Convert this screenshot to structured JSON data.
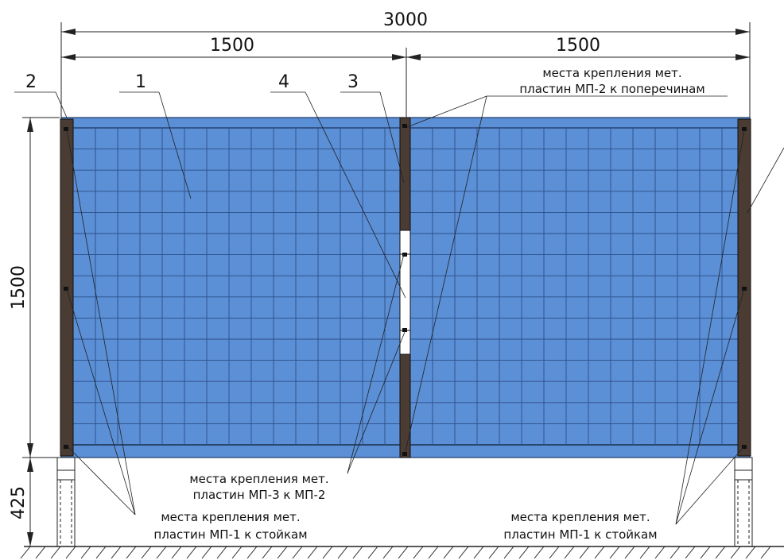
{
  "dimensions": {
    "total_width": "3000",
    "left_half": "1500",
    "right_half": "1500",
    "panel_height": "1500",
    "post_height": "425"
  },
  "callouts": {
    "c1": "1",
    "c2": "2",
    "c3": "3",
    "c4": "4"
  },
  "notes": {
    "top_right_line1": "места крепления мет.",
    "top_right_line2": "пластин МП-2 к поперечинам",
    "center_line1": "места крепления мет.",
    "center_line2": "пластин МП-3 к МП-2",
    "bottom_left_line1": "места крепления мет.",
    "bottom_left_line2": "пластин МП-1 к стойкам",
    "bottom_right_line1": "места крепления мет.",
    "bottom_right_line2": "пластин МП-1 к стойкам"
  },
  "colors": {
    "panel_fill": "#5b8fd6",
    "grid_line": "#2d4f86",
    "post_fill": "#4a3b33",
    "ground_hatch": "#222222"
  }
}
